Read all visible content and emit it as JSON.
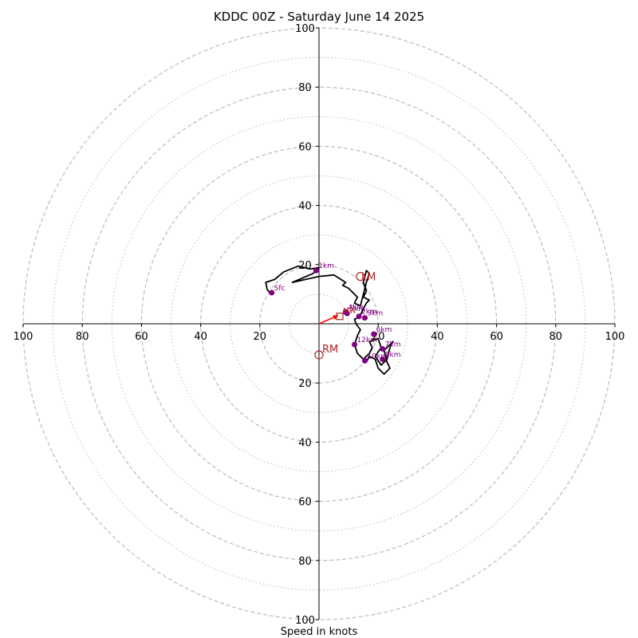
{
  "chart_data": {
    "type": "hodograph",
    "title": "KDDC 00Z - Saturday June 14 2025",
    "xlabel": "Speed in knots",
    "x_range": [
      -100,
      100
    ],
    "y_range": [
      -100,
      100
    ],
    "ring_major": [
      20,
      40,
      60,
      80,
      100
    ],
    "ring_minor": [
      10,
      30,
      50,
      70,
      90
    ],
    "tick_labels": {
      "left": [
        "100",
        "80",
        "60",
        "40",
        "20"
      ],
      "right": [
        "20",
        "40",
        "60",
        "80",
        "100"
      ],
      "top": [
        "100",
        "80",
        "60",
        "40",
        "20"
      ],
      "bottom": [
        "20",
        "40",
        "60",
        "80",
        "100"
      ]
    },
    "tick_values": [
      100,
      80,
      60,
      40,
      20
    ],
    "hodograph_trace": [
      [
        -16,
        10
      ],
      [
        -17.5,
        11.5
      ],
      [
        -18,
        14
      ],
      [
        -15,
        15
      ],
      [
        -12,
        17.5
      ],
      [
        -7,
        19.5
      ],
      [
        -3,
        18.5
      ],
      [
        0,
        19
      ],
      [
        -2,
        17
      ],
      [
        -9,
        14
      ],
      [
        0,
        16
      ],
      [
        5,
        16.5
      ],
      [
        9,
        14
      ],
      [
        8,
        13
      ],
      [
        10,
        12
      ],
      [
        13,
        9
      ],
      [
        12,
        7
      ],
      [
        14,
        6
      ],
      [
        15,
        10
      ],
      [
        16,
        14
      ],
      [
        17,
        17
      ],
      [
        16,
        18
      ],
      [
        15,
        14
      ],
      [
        16,
        11
      ],
      [
        15,
        9
      ],
      [
        17,
        8
      ],
      [
        16,
        7
      ],
      [
        15,
        5
      ],
      [
        14,
        3
      ],
      [
        13,
        2
      ],
      [
        12,
        1.5
      ],
      [
        12.5,
        0
      ],
      [
        14,
        -2
      ],
      [
        13,
        -4
      ],
      [
        12,
        -7
      ],
      [
        13,
        -10
      ],
      [
        15,
        -12
      ],
      [
        17,
        -10
      ],
      [
        18,
        -8
      ],
      [
        17,
        -6
      ],
      [
        20,
        -5
      ],
      [
        21,
        -8
      ],
      [
        19,
        -11
      ],
      [
        21,
        -14
      ],
      [
        23,
        -12
      ],
      [
        24,
        -8
      ],
      [
        25,
        -6
      ],
      [
        22,
        -9
      ],
      [
        23,
        -13
      ],
      [
        24,
        -15
      ],
      [
        22,
        -17
      ],
      [
        20,
        -15
      ],
      [
        19,
        -12
      ],
      [
        17,
        -11
      ],
      [
        16,
        -13
      ]
    ],
    "height_markers": [
      {
        "label": "Sfc",
        "u": -16,
        "v": 10.5
      },
      {
        "label": "1km",
        "u": -1,
        "v": 18
      },
      {
        "label": "2km",
        "u": 13.5,
        "v": 2.5
      },
      {
        "label": "3km",
        "u": 15.5,
        "v": 2
      },
      {
        "label": "4km",
        "u": 9,
        "v": 4
      },
      {
        "label": "5km",
        "u": 9.5,
        "v": 3.5
      },
      {
        "label": "6km",
        "u": 18.5,
        "v": -3.5
      },
      {
        "label": "7km",
        "u": 21.5,
        "v": -8.5
      },
      {
        "label": "8km",
        "u": 21.5,
        "v": -12
      },
      {
        "label": "10km",
        "u": 15.5,
        "v": -12.5
      },
      {
        "label": "12km",
        "u": 12,
        "v": -7
      }
    ],
    "marker_color": "#800080",
    "trace_color": "#000000",
    "bunkers_right": {
      "label": "RM",
      "u": 0,
      "v": -10.5
    },
    "bunkers_left": {
      "label": "LM",
      "u": 14,
      "v": 16
    },
    "mean_wind": {
      "label": "MW",
      "u": 7,
      "v": 2.5
    },
    "storm_motion_vector": {
      "u": 6.5,
      "v": 2.8
    },
    "storm_color": "#b22222",
    "vector_color": "#ff0000",
    "grid_color": "#bbbbbb"
  }
}
